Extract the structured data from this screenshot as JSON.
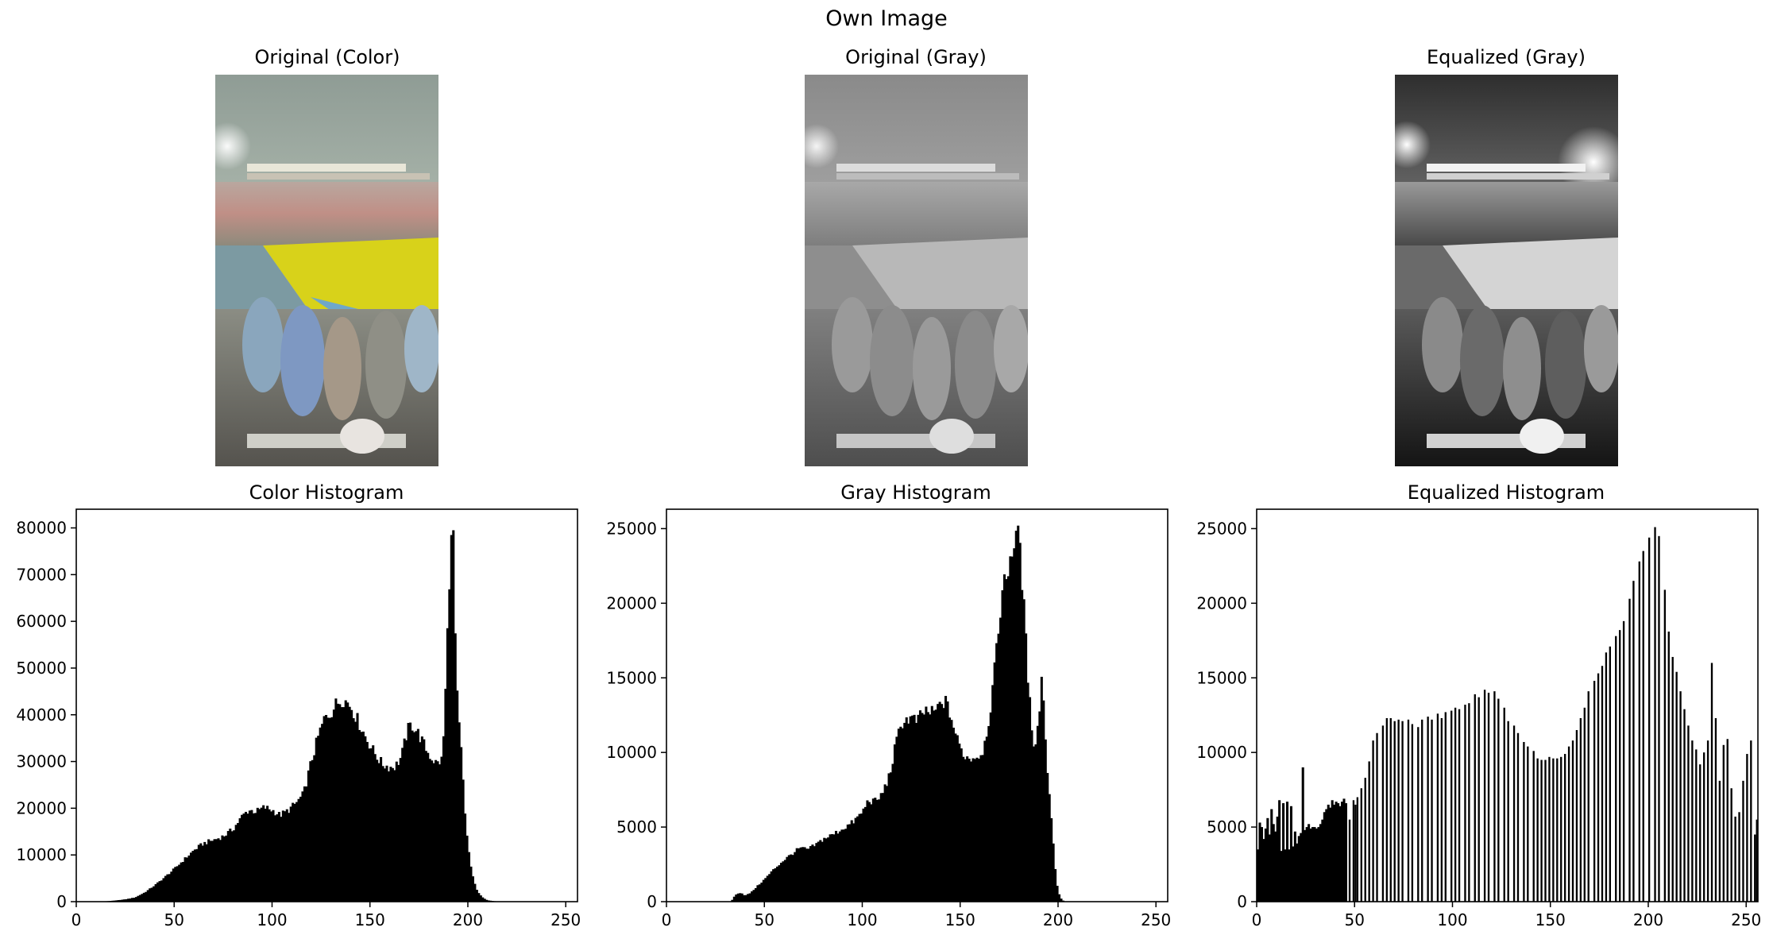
{
  "figure": {
    "suptitle": "Own Image"
  },
  "images": [
    {
      "title": "Original (Color)",
      "style": "color"
    },
    {
      "title": "Original (Gray)",
      "style": "gray"
    },
    {
      "title": "Equalized (Gray)",
      "style": "equalized"
    }
  ],
  "colors": {
    "bars": "#000000",
    "axes": "#000000",
    "background": "#ffffff",
    "field_color": "#d8d21a",
    "sky_color": "#b7c2b6"
  },
  "chart_data": [
    {
      "type": "bar",
      "title": "Color Histogram",
      "xlabel": "",
      "ylabel": "",
      "xlim": [
        0,
        256
      ],
      "ylim": [
        0,
        84000
      ],
      "xticks": [
        0,
        50,
        100,
        150,
        200,
        250
      ],
      "yticks": [
        0,
        10000,
        20000,
        30000,
        40000,
        50000,
        60000,
        70000,
        80000
      ],
      "grid": false,
      "bins": 256,
      "profile": [
        [
          0,
          0
        ],
        [
          10,
          0
        ],
        [
          15,
          80
        ],
        [
          20,
          250
        ],
        [
          25,
          500
        ],
        [
          30,
          900
        ],
        [
          35,
          2000
        ],
        [
          40,
          3500
        ],
        [
          45,
          5200
        ],
        [
          50,
          7000
        ],
        [
          55,
          9000
        ],
        [
          60,
          11000
        ],
        [
          65,
          12500
        ],
        [
          70,
          13200
        ],
        [
          75,
          14000
        ],
        [
          80,
          15500
        ],
        [
          85,
          18500
        ],
        [
          88,
          19600
        ],
        [
          92,
          19300
        ],
        [
          96,
          20200
        ],
        [
          100,
          19600
        ],
        [
          104,
          18500
        ],
        [
          108,
          19500
        ],
        [
          112,
          21000
        ],
        [
          116,
          23000
        ],
        [
          120,
          30000
        ],
        [
          124,
          36000
        ],
        [
          127,
          39500
        ],
        [
          130,
          40500
        ],
        [
          133,
          42500
        ],
        [
          136,
          43500
        ],
        [
          140,
          42000
        ],
        [
          144,
          38500
        ],
        [
          148,
          35000
        ],
        [
          152,
          32000
        ],
        [
          156,
          29500
        ],
        [
          160,
          28800
        ],
        [
          163,
          29000
        ],
        [
          166,
          31000
        ],
        [
          169,
          36500
        ],
        [
          171,
          38000
        ],
        [
          174,
          36500
        ],
        [
          177,
          34000
        ],
        [
          180,
          31500
        ],
        [
          184,
          29500
        ],
        [
          187,
          30500
        ],
        [
          189,
          50000
        ],
        [
          190,
          65000
        ],
        [
          191,
          74000
        ],
        [
          192,
          79500
        ],
        [
          193,
          63000
        ],
        [
          194,
          48000
        ],
        [
          195,
          40000
        ],
        [
          197,
          30000
        ],
        [
          198,
          21000
        ],
        [
          200,
          12000
        ],
        [
          202,
          6000
        ],
        [
          204,
          3000
        ],
        [
          206,
          1500
        ],
        [
          208,
          700
        ],
        [
          210,
          300
        ],
        [
          214,
          80
        ],
        [
          218,
          0
        ],
        [
          256,
          0
        ]
      ],
      "peak": {
        "bin": 192,
        "value": 79500
      }
    },
    {
      "type": "bar",
      "title": "Gray Histogram",
      "xlabel": "",
      "ylabel": "",
      "xlim": [
        0,
        256
      ],
      "ylim": [
        0,
        26300
      ],
      "xticks": [
        0,
        50,
        100,
        150,
        200,
        250
      ],
      "yticks": [
        0,
        5000,
        10000,
        15000,
        20000,
        25000
      ],
      "grid": false,
      "bins": 256,
      "profile": [
        [
          0,
          0
        ],
        [
          33,
          0
        ],
        [
          34,
          250
        ],
        [
          36,
          550
        ],
        [
          38,
          600
        ],
        [
          40,
          400
        ],
        [
          43,
          600
        ],
        [
          46,
          1000
        ],
        [
          50,
          1500
        ],
        [
          55,
          2200
        ],
        [
          60,
          2800
        ],
        [
          65,
          3300
        ],
        [
          68,
          3600
        ],
        [
          72,
          3500
        ],
        [
          76,
          3800
        ],
        [
          80,
          4200
        ],
        [
          85,
          4500
        ],
        [
          90,
          4900
        ],
        [
          95,
          5300
        ],
        [
          100,
          6000
        ],
        [
          103,
          6800
        ],
        [
          107,
          6700
        ],
        [
          110,
          7200
        ],
        [
          114,
          8500
        ],
        [
          117,
          10500
        ],
        [
          120,
          12000
        ],
        [
          124,
          12300
        ],
        [
          128,
          12100
        ],
        [
          132,
          12800
        ],
        [
          136,
          12600
        ],
        [
          140,
          13200
        ],
        [
          142,
          13500
        ],
        [
          145,
          12500
        ],
        [
          148,
          11000
        ],
        [
          151,
          10000
        ],
        [
          154,
          9600
        ],
        [
          157,
          9700
        ],
        [
          160,
          9800
        ],
        [
          162,
          10300
        ],
        [
          165,
          12500
        ],
        [
          168,
          16000
        ],
        [
          171,
          20500
        ],
        [
          174,
          22000
        ],
        [
          176,
          23500
        ],
        [
          178,
          24200
        ],
        [
          179,
          25200
        ],
        [
          180,
          24800
        ],
        [
          181,
          22800
        ],
        [
          183,
          18500
        ],
        [
          185,
          14000
        ],
        [
          187,
          11000
        ],
        [
          188,
          10500
        ],
        [
          190,
          12000
        ],
        [
          192,
          16000
        ],
        [
          193,
          11500
        ],
        [
          195,
          8000
        ],
        [
          197,
          5000
        ],
        [
          198,
          2800
        ],
        [
          199,
          1500
        ],
        [
          200,
          700
        ],
        [
          201,
          300
        ],
        [
          202,
          100
        ],
        [
          204,
          0
        ],
        [
          256,
          0
        ]
      ],
      "peak": {
        "bin": 179,
        "value": 25200
      }
    },
    {
      "type": "bar",
      "title": "Equalized Histogram",
      "xlabel": "",
      "ylabel": "",
      "xlim": [
        0,
        256
      ],
      "ylim": [
        0,
        26300
      ],
      "xticks": [
        0,
        50,
        100,
        150,
        200,
        250
      ],
      "yticks": [
        0,
        5000,
        10000,
        15000,
        20000,
        25000
      ],
      "grid": false,
      "bins": 256,
      "dense_profile": [
        [
          0,
          3500
        ],
        [
          1,
          5300
        ],
        [
          2,
          5000
        ],
        [
          3,
          4200
        ],
        [
          5,
          5600
        ],
        [
          6,
          4500
        ],
        [
          7,
          6200
        ],
        [
          8,
          5200
        ],
        [
          9,
          4700
        ],
        [
          10,
          5700
        ],
        [
          11,
          6800
        ],
        [
          12,
          3400
        ],
        [
          13,
          6600
        ],
        [
          14,
          3500
        ],
        [
          15,
          6700
        ],
        [
          16,
          3500
        ],
        [
          17,
          6400
        ],
        [
          18,
          3700
        ],
        [
          19,
          4700
        ],
        [
          20,
          3900
        ],
        [
          21,
          4400
        ],
        [
          22,
          4600
        ],
        [
          23,
          9000
        ],
        [
          24,
          4800
        ],
        [
          25,
          5000
        ],
        [
          26,
          5200
        ],
        [
          27,
          4900
        ],
        [
          28,
          5000
        ],
        [
          29,
          5000
        ],
        [
          30,
          4900
        ],
        [
          31,
          5000
        ],
        [
          32,
          5200
        ],
        [
          33,
          5500
        ],
        [
          34,
          6000
        ],
        [
          35,
          6200
        ],
        [
          36,
          6500
        ],
        [
          37,
          6300
        ],
        [
          38,
          6800
        ],
        [
          39,
          6500
        ],
        [
          40,
          6700
        ],
        [
          41,
          6600
        ],
        [
          42,
          6400
        ],
        [
          43,
          6700
        ],
        [
          44,
          6900
        ],
        [
          45,
          6600
        ]
      ],
      "spikes": [
        [
          47,
          5500
        ],
        [
          49,
          6800
        ],
        [
          50,
          6500
        ],
        [
          51,
          7000
        ],
        [
          53,
          7600
        ],
        [
          55,
          8300
        ],
        [
          57,
          9400
        ],
        [
          59,
          10800
        ],
        [
          61,
          11300
        ],
        [
          64,
          11800
        ],
        [
          66,
          12300
        ],
        [
          68,
          12300
        ],
        [
          70,
          12100
        ],
        [
          72,
          12200
        ],
        [
          74,
          12100
        ],
        [
          77,
          12200
        ],
        [
          79,
          11900
        ],
        [
          82,
          11700
        ],
        [
          84,
          12200
        ],
        [
          87,
          12400
        ],
        [
          89,
          12200
        ],
        [
          92,
          12600
        ],
        [
          94,
          12300
        ],
        [
          96,
          12700
        ],
        [
          99,
          12800
        ],
        [
          101,
          13000
        ],
        [
          103,
          12900
        ],
        [
          106,
          13200
        ],
        [
          108,
          13300
        ],
        [
          111,
          13900
        ],
        [
          113,
          13700
        ],
        [
          116,
          14200
        ],
        [
          118,
          14000
        ],
        [
          121,
          14100
        ],
        [
          123,
          13600
        ],
        [
          126,
          13000
        ],
        [
          128,
          12100
        ],
        [
          131,
          11800
        ],
        [
          133,
          11300
        ],
        [
          136,
          10700
        ],
        [
          138,
          10400
        ],
        [
          141,
          10100
        ],
        [
          143,
          9600
        ],
        [
          145,
          9500
        ],
        [
          147,
          9500
        ],
        [
          149,
          9700
        ],
        [
          151,
          9600
        ],
        [
          153,
          9600
        ],
        [
          155,
          9700
        ],
        [
          157,
          9900
        ],
        [
          159,
          10400
        ],
        [
          161,
          10800
        ],
        [
          163,
          11500
        ],
        [
          165,
          12300
        ],
        [
          167,
          13000
        ],
        [
          169,
          14100
        ],
        [
          172,
          14800
        ],
        [
          174,
          15300
        ],
        [
          176,
          15800
        ],
        [
          178,
          16700
        ],
        [
          180,
          17100
        ],
        [
          183,
          17800
        ],
        [
          185,
          18200
        ],
        [
          187,
          18800
        ],
        [
          190,
          20300
        ],
        [
          192,
          21500
        ],
        [
          195,
          22800
        ],
        [
          197,
          23500
        ],
        [
          200,
          24400
        ],
        [
          203,
          25100
        ],
        [
          205,
          24500
        ],
        [
          208,
          20900
        ],
        [
          210,
          18100
        ],
        [
          212,
          16400
        ],
        [
          214,
          15400
        ],
        [
          216,
          14100
        ],
        [
          218,
          12900
        ],
        [
          220,
          11800
        ],
        [
          222,
          10800
        ],
        [
          224,
          10200
        ],
        [
          226,
          9200
        ],
        [
          228,
          10000
        ],
        [
          230,
          10800
        ],
        [
          232,
          16000
        ],
        [
          234,
          12300
        ],
        [
          236,
          8100
        ],
        [
          238,
          10500
        ],
        [
          240,
          10900
        ],
        [
          242,
          7600
        ],
        [
          244,
          5700
        ],
        [
          246,
          6000
        ],
        [
          248,
          8100
        ],
        [
          250,
          9900
        ],
        [
          252,
          10800
        ],
        [
          254,
          4500
        ],
        [
          255,
          5500
        ]
      ]
    }
  ]
}
